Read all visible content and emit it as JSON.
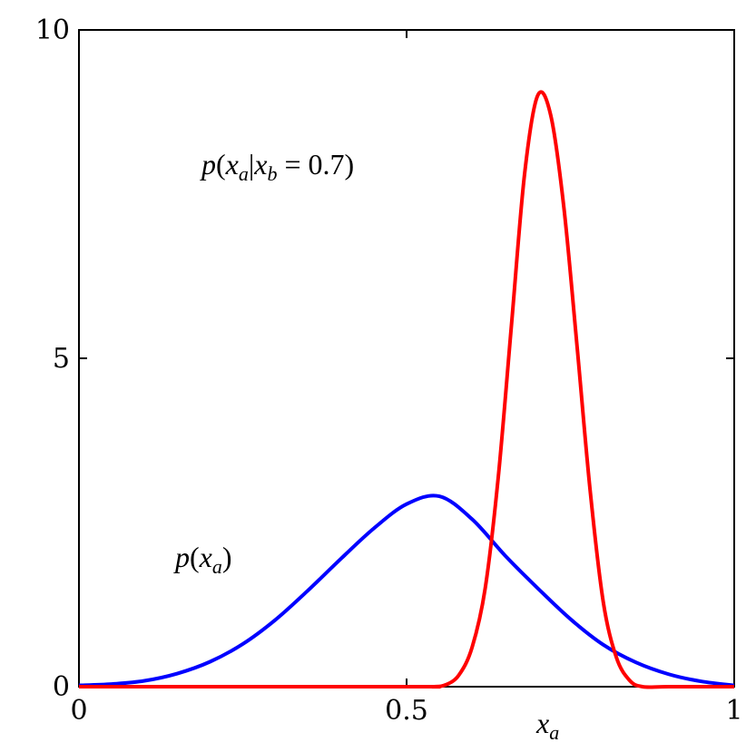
{
  "chart_data": {
    "type": "line",
    "xlabel": "x",
    "xlabel_sub": "a",
    "ylabel": "",
    "xlim": [
      0,
      1
    ],
    "ylim": [
      0,
      10
    ],
    "x_ticks": [
      {
        "value": 0,
        "label": "0"
      },
      {
        "value": 0.5,
        "label": "0.5"
      },
      {
        "value": 1,
        "label": "1"
      }
    ],
    "y_ticks": [
      {
        "value": 0,
        "label": "0"
      },
      {
        "value": 5,
        "label": "5"
      },
      {
        "value": 10,
        "label": "10"
      }
    ],
    "grid": false,
    "legend": "none",
    "series": [
      {
        "color": "#0000ff",
        "x": [
          0.0,
          0.05,
          0.1,
          0.15,
          0.2,
          0.25,
          0.3,
          0.35,
          0.4,
          0.45,
          0.5,
          0.55,
          0.6,
          0.65,
          0.7,
          0.75,
          0.8,
          0.85,
          0.9,
          0.95,
          1.0
        ],
        "y": [
          0.02,
          0.04,
          0.09,
          0.2,
          0.38,
          0.65,
          1.02,
          1.47,
          1.95,
          2.41,
          2.78,
          2.9,
          2.55,
          2.0,
          1.5,
          1.03,
          0.64,
          0.37,
          0.19,
          0.08,
          0.02
        ]
      },
      {
        "color": "#ff0000",
        "x": [
          0.0,
          0.5,
          0.54,
          0.56,
          0.58,
          0.6,
          0.62,
          0.64,
          0.66,
          0.68,
          0.7,
          0.72,
          0.74,
          0.76,
          0.78,
          0.8,
          0.82,
          0.84,
          0.86,
          0.9,
          1.0
        ],
        "y": [
          0.0,
          0.0,
          0.0,
          0.03,
          0.18,
          0.6,
          1.5,
          3.2,
          5.5,
          7.8,
          9.0,
          8.7,
          7.3,
          5.2,
          3.0,
          1.3,
          0.45,
          0.1,
          0.0,
          0.0,
          0.0
        ]
      }
    ],
    "annotations": [
      {
        "text": "p(x_a|x_b = 0.7)",
        "math_parts": {
          "p": "p",
          "open": "(",
          "x1": "x",
          "sub1": "a",
          "bar": "|",
          "x2": "x",
          "sub2": "b",
          "eq": " = 0.7)"
        }
      },
      {
        "text": "p(x_a)",
        "math_parts": {
          "p": "p",
          "open": "(",
          "x1": "x",
          "sub1": "a",
          "close": ")"
        }
      }
    ]
  }
}
